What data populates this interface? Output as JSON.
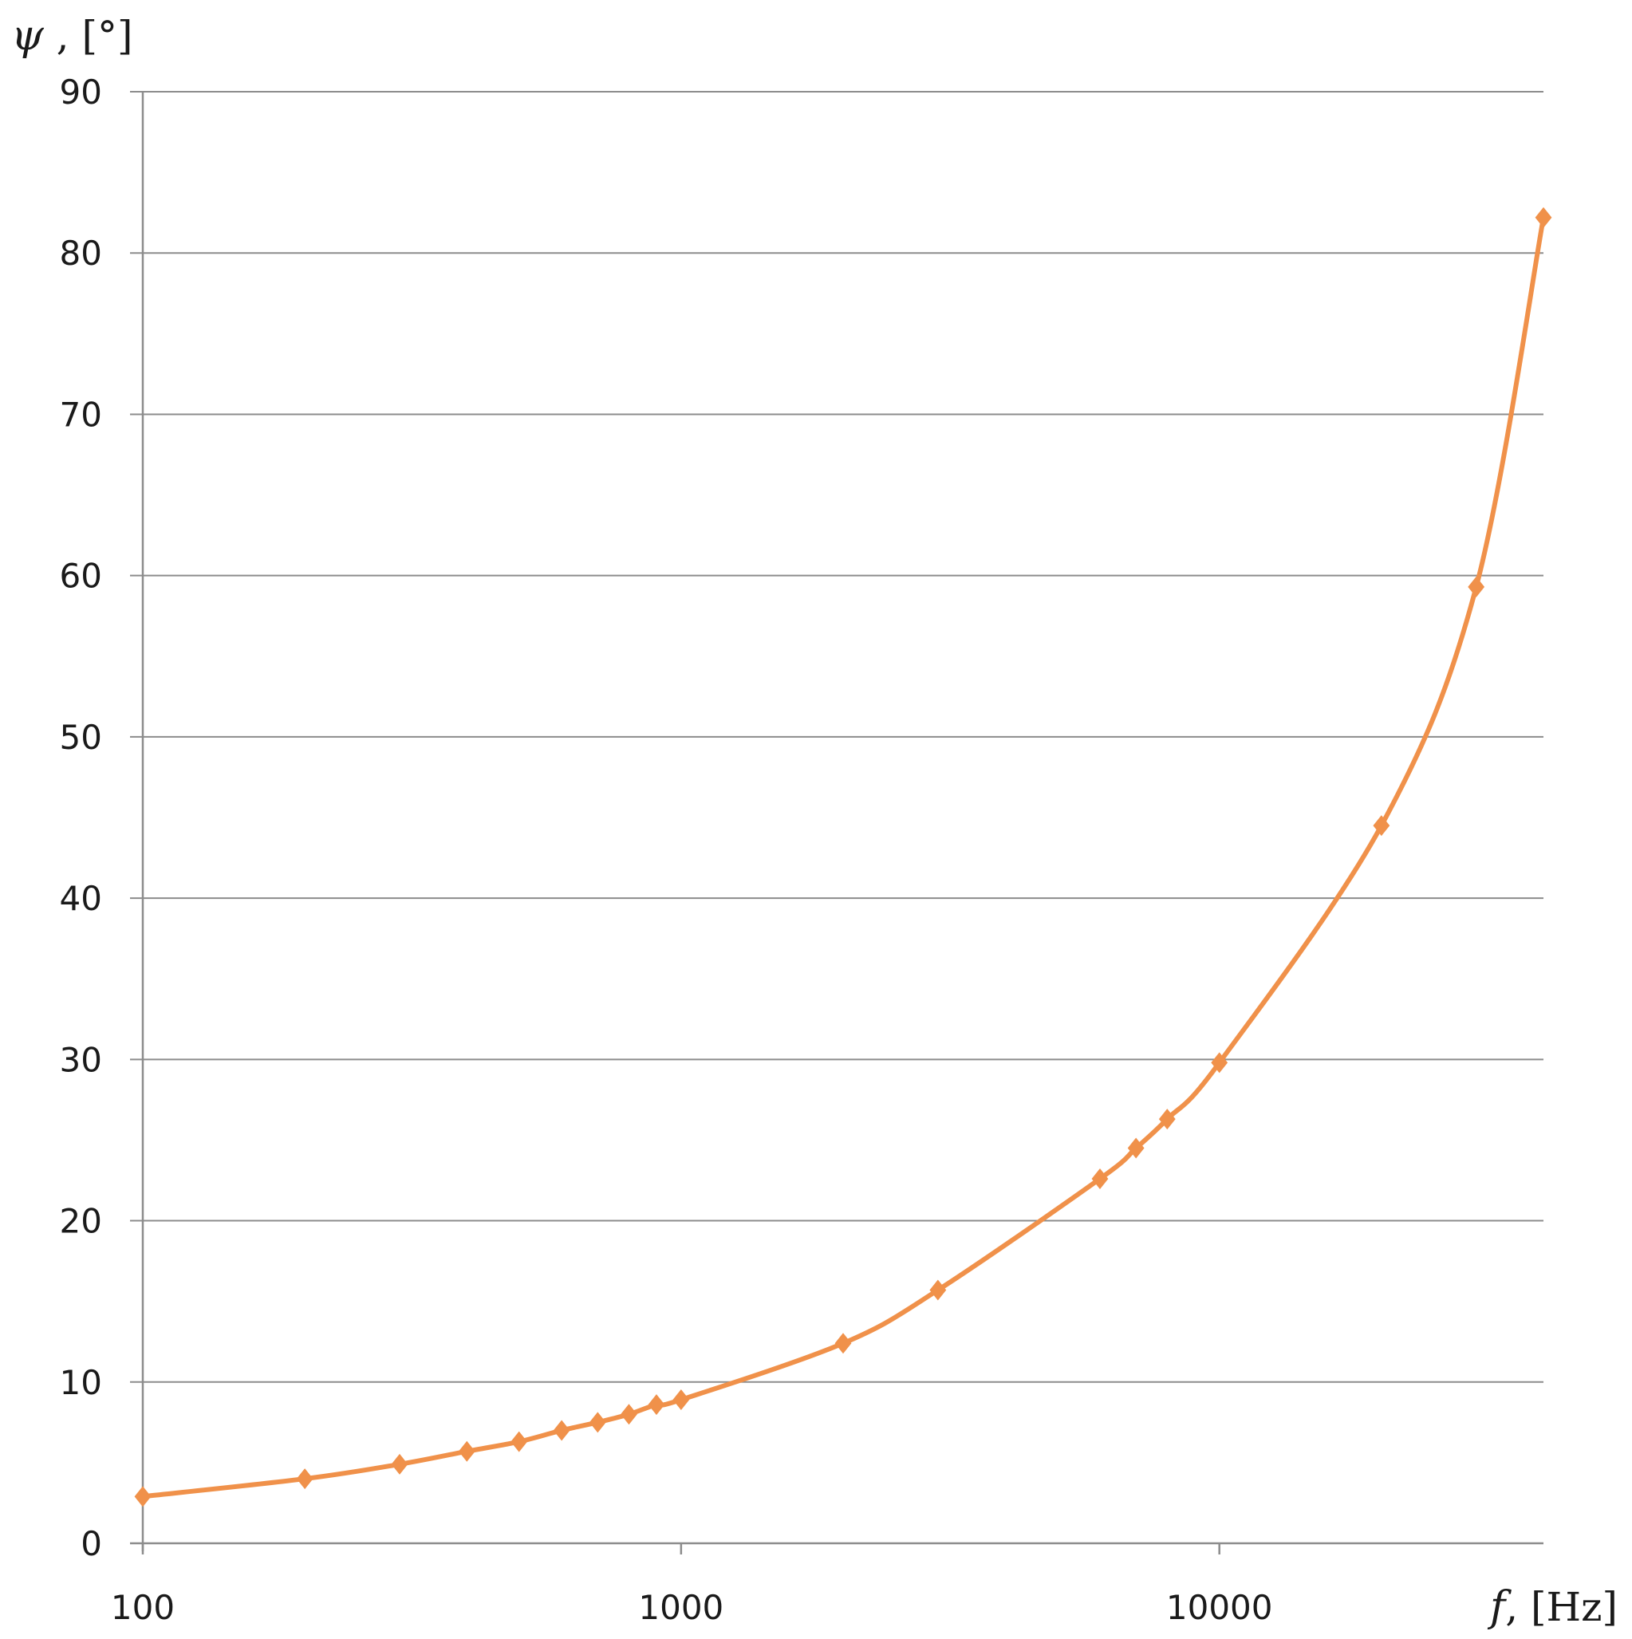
{
  "chart_data": {
    "type": "line",
    "x_scale": "log",
    "xlim": [
      100,
      40000
    ],
    "ylim": [
      0,
      90
    ],
    "x_ticks": [
      100,
      1000,
      10000
    ],
    "x_tick_labels": [
      "100",
      "1000",
      "10000"
    ],
    "y_ticks": [
      0,
      10,
      20,
      30,
      40,
      50,
      60,
      70,
      80,
      90
    ],
    "y_tick_labels": [
      "0",
      "10",
      "20",
      "30",
      "40",
      "50",
      "60",
      "70",
      "80",
      "90"
    ],
    "grid": {
      "horizontal": true,
      "vertical": false
    },
    "xlabel": {
      "symbol": "f",
      "unit": ", [Hz]"
    },
    "ylabel": {
      "symbol": "ψ",
      "unit": " , [°]"
    },
    "marker": "diamond",
    "colors": {
      "series": "#f0914a",
      "grid": "#8c8c8c",
      "text": "#1a1a1a"
    },
    "series": [
      {
        "x": [
          100,
          200,
          300,
          400,
          500,
          600,
          700,
          800,
          900,
          1000,
          2000,
          3000,
          6000,
          7000,
          8000,
          10000,
          20000,
          30000,
          40000
        ],
        "y": [
          2.9,
          4.0,
          4.9,
          5.7,
          6.3,
          7.0,
          7.5,
          8.0,
          8.6,
          8.9,
          12.4,
          15.7,
          22.6,
          24.5,
          26.3,
          29.8,
          44.5,
          59.3,
          82.2
        ]
      }
    ]
  }
}
